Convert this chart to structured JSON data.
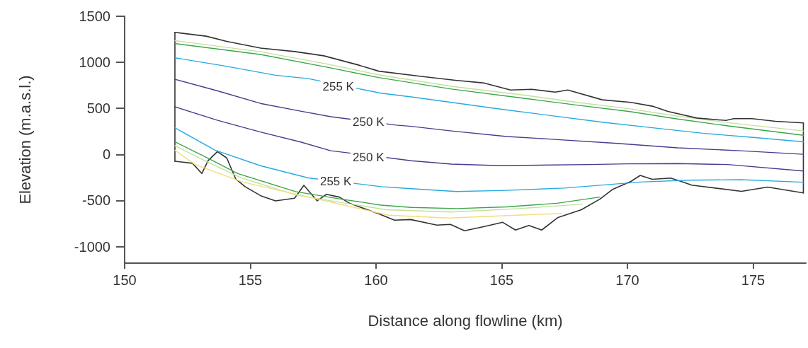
{
  "chart_data": {
    "type": "line",
    "xlabel": "Distance along flowline (km)",
    "ylabel": "Elevation (m.a.s.l.)",
    "xlim": [
      150,
      177.1
    ],
    "xticks": [
      150,
      155,
      160,
      165,
      170,
      175
    ],
    "ylim": [
      -1180,
      1500
    ],
    "yticks": [
      -1000,
      -500,
      0,
      500,
      1000,
      1500
    ],
    "grid": false,
    "marker": "none",
    "line_style": "solid",
    "series": [
      {
        "color": "#333333",
        "x": [
          152,
          153.24,
          154.06,
          155.41,
          156.76,
          157.92,
          159.27,
          160.11,
          161.8,
          163.15,
          164.31,
          165.35,
          166.2,
          167.13,
          167.63,
          169.0,
          170.14,
          170.99,
          171.61,
          172.76,
          173.92,
          174.23,
          174.96,
          175.89,
          177
        ],
        "values": [
          1325,
          1284,
          1227,
          1155,
          1117,
          1071,
          973,
          904,
          847,
          805,
          775,
          699,
          707,
          676,
          699,
          593,
          565,
          524,
          467,
          395,
          369,
          388,
          388,
          360,
          342
        ]
      },
      {
        "color": "#333333",
        "x": [
          152,
          152.7,
          153.07,
          153.32,
          153.69,
          154.06,
          154.42,
          154.79,
          155.41,
          156.0,
          156.76,
          157.13,
          157.66,
          158.03,
          158.54,
          158.96,
          160.11,
          160.73,
          161.38,
          162.42,
          162.96,
          163.52,
          164.31,
          165.04,
          165.55,
          166.08,
          166.59,
          167.24,
          168.17,
          168.9,
          169.41,
          170.14,
          170.51,
          170.99,
          171.72,
          172.14,
          172.56,
          174.54,
          175.58,
          177
        ],
        "values": [
          -74,
          -96,
          -207,
          -68,
          30,
          -38,
          -266,
          -350,
          -448,
          -504,
          -476,
          -335,
          -504,
          -433,
          -463,
          -532,
          -645,
          -714,
          -707,
          -767,
          -760,
          -828,
          -783,
          -737,
          -821,
          -771,
          -821,
          -684,
          -600,
          -486,
          -380,
          -293,
          -228,
          -270,
          -256,
          -293,
          -334,
          -400,
          -355,
          -418
        ]
      },
      {
        "color": "#333333",
        "x": [
          152,
          152
        ],
        "values": [
          -74,
          1325
        ]
      },
      {
        "color": "#333333",
        "x": [
          177,
          177
        ],
        "values": [
          -418,
          342
        ]
      },
      {
        "color": "#c3e09a",
        "x": [
          152,
          155.4,
          158,
          160.1,
          163,
          166,
          168,
          170.1,
          172,
          174,
          177
        ],
        "values": [
          1235,
          1115,
          985,
          865,
          740,
          640,
          565,
          495,
          415,
          345,
          255
        ]
      },
      {
        "color": "#3aa64a",
        "x": [
          152,
          155.4,
          158,
          160.1,
          163,
          166,
          168,
          170.1,
          172,
          174,
          177
        ],
        "values": [
          1204,
          1085,
          950,
          835,
          710,
          605,
          535,
          465,
          385,
          310,
          208
        ]
      },
      {
        "color": "#29a9e0",
        "x": [
          152,
          154,
          156,
          157.3,
          160.2,
          161.4,
          163,
          165,
          167,
          169,
          171,
          173,
          175,
          177
        ],
        "values": [
          1049,
          960,
          860,
          823,
          665,
          625,
          565,
          490,
          420,
          350,
          290,
          230,
          185,
          137
        ]
      },
      {
        "color": "#4b3a8f",
        "x": [
          152,
          153.7,
          155.4,
          157,
          158.2,
          160.8,
          161.4,
          163,
          165.2,
          167,
          169.6,
          172,
          174.5,
          177
        ],
        "values": [
          816,
          690,
          554,
          470,
          410,
          318,
          305,
          255,
          195,
          165,
          120,
          72,
          40,
          2
        ]
      },
      {
        "color": "#4b3a8f",
        "x": [
          152,
          153.7,
          155.4,
          157,
          158.2,
          160.8,
          161.4,
          163,
          165,
          167,
          168.5,
          170,
          172,
          174,
          177
        ],
        "values": [
          517,
          370,
          243,
          135,
          40,
          -47,
          -68,
          -105,
          -122,
          -115,
          -110,
          -102,
          -99,
          -110,
          -180
        ]
      },
      {
        "color": "#29a9e0",
        "x": [
          152,
          153.6,
          155.4,
          157.3,
          159.4,
          160.2,
          161.4,
          163.2,
          165.2,
          167.5,
          169.8,
          170.5,
          172.4,
          174.5,
          177
        ],
        "values": [
          289,
          46,
          -122,
          -255,
          -323,
          -350,
          -372,
          -403,
          -390,
          -365,
          -315,
          -300,
          -280,
          -274,
          -302
        ]
      },
      {
        "color": "#3aa64a",
        "x": [
          152,
          153.3,
          154.5,
          156.8,
          158.5,
          160.2,
          161.4,
          163.2,
          165.2,
          167.2,
          168.9
        ],
        "values": [
          137,
          -38,
          -208,
          -403,
          -480,
          -550,
          -575,
          -588,
          -570,
          -530,
          -463
        ]
      },
      {
        "color": "#c3e09a",
        "x": [
          152,
          153.2,
          154.6,
          156.8,
          158.8,
          160.4,
          163,
          165.6,
          168.2
        ],
        "values": [
          95,
          -70,
          -250,
          -440,
          -530,
          -600,
          -625,
          -590,
          -540
        ]
      },
      {
        "color": "#f2de7c",
        "x": [
          152,
          152.8,
          154.7,
          160.5,
          162.9,
          165.6,
          167.4
        ],
        "values": [
          45,
          -110,
          -300,
          -660,
          -690,
          -660,
          -640
        ]
      }
    ],
    "annotations": [
      {
        "text": "255 K",
        "x": 158.5,
        "y": 735
      },
      {
        "text": "250 K",
        "x": 159.7,
        "y": 355
      },
      {
        "text": "250 K",
        "x": 159.7,
        "y": -35
      },
      {
        "text": "255 K",
        "x": 158.4,
        "y": -290
      }
    ]
  }
}
